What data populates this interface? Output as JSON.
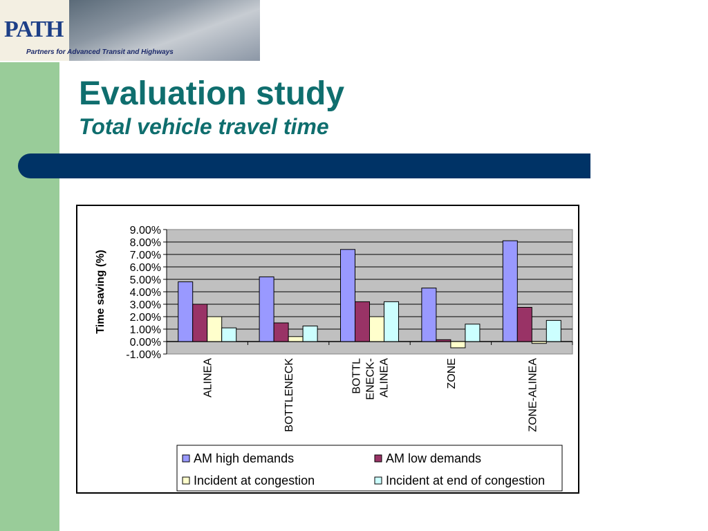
{
  "header": {
    "logo_text": "PATH",
    "tagline": "Partners for Advanced Transit and Highways"
  },
  "slide": {
    "title": "Evaluation study",
    "subtitle": "Total vehicle travel time"
  },
  "colors": {
    "title": "#0f6e6e",
    "bar": "#003366",
    "band": "#99cc99"
  },
  "chart_data": {
    "type": "bar",
    "title": "",
    "xlabel": "",
    "ylabel": "Time saving (%)",
    "ylim": [
      -1,
      9
    ],
    "yticks": [
      "-1.00%",
      "0.00%",
      "1.00%",
      "2.00%",
      "3.00%",
      "4.00%",
      "5.00%",
      "6.00%",
      "7.00%",
      "8.00%",
      "9.00%"
    ],
    "categories": [
      "ALINEA",
      "BOTTLENECK",
      "BOTTL ENECK- ALINEA",
      "ZONE",
      "ZONE-ALINEA"
    ],
    "category_lines": [
      [
        "ALINEA"
      ],
      [
        "BOTTLENECK"
      ],
      [
        "BOTTL",
        "ENECK-",
        "ALINEA"
      ],
      [
        "ZONE"
      ],
      [
        "ZONE-ALINEA"
      ]
    ],
    "grid": true,
    "legend_position": "bottom",
    "series": [
      {
        "name": "AM high demands",
        "color": "#9999ff",
        "values": [
          4.8,
          5.2,
          7.4,
          4.3,
          8.1
        ]
      },
      {
        "name": "AM low demands",
        "color": "#993366",
        "values": [
          3.0,
          1.5,
          3.2,
          0.15,
          2.75
        ]
      },
      {
        "name": "Incident at congestion",
        "color": "#ffffcc",
        "values": [
          2.0,
          0.4,
          2.0,
          -0.5,
          -0.15
        ]
      },
      {
        "name": "Incident at end of congestion",
        "color": "#ccffff",
        "values": [
          1.1,
          1.25,
          3.2,
          1.4,
          1.7
        ]
      }
    ]
  }
}
